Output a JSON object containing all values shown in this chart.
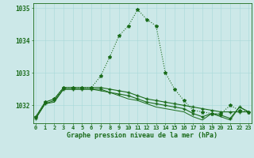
{
  "title": "Graphe pression niveau de la mer (hPa)",
  "hours": [
    0,
    1,
    2,
    3,
    4,
    5,
    6,
    7,
    8,
    9,
    10,
    11,
    12,
    13,
    14,
    15,
    16,
    17,
    18,
    19,
    20,
    21,
    22,
    23
  ],
  "line_main": [
    1031.65,
    1032.1,
    1032.2,
    1032.55,
    1032.55,
    1032.55,
    1032.55,
    1032.9,
    1033.5,
    1034.15,
    1034.45,
    1034.95,
    1034.65,
    1034.45,
    1033.0,
    1032.5,
    1032.15,
    1031.85,
    1031.8,
    1031.75,
    1031.75,
    1032.0,
    1031.85,
    1031.8
  ],
  "line_flat1": [
    1031.65,
    1032.1,
    1032.2,
    1032.55,
    1032.55,
    1032.55,
    1032.55,
    1032.55,
    1032.5,
    1032.45,
    1032.4,
    1032.3,
    1032.2,
    1032.15,
    1032.1,
    1032.05,
    1032.0,
    1031.95,
    1031.9,
    1031.85,
    1031.8,
    1031.8,
    1031.8,
    1031.8
  ],
  "line_flat2": [
    1031.6,
    1032.05,
    1032.15,
    1032.5,
    1032.5,
    1032.5,
    1032.5,
    1032.5,
    1032.4,
    1032.35,
    1032.3,
    1032.2,
    1032.1,
    1032.05,
    1032.0,
    1031.95,
    1031.9,
    1031.75,
    1031.65,
    1031.75,
    1031.7,
    1031.6,
    1031.95,
    1031.8
  ],
  "line_flat3": [
    1031.6,
    1032.05,
    1032.1,
    1032.5,
    1032.5,
    1032.5,
    1032.5,
    1032.45,
    1032.4,
    1032.3,
    1032.2,
    1032.15,
    1032.05,
    1031.95,
    1031.9,
    1031.85,
    1031.8,
    1031.65,
    1031.55,
    1031.75,
    1031.65,
    1031.55,
    1031.95,
    1031.8
  ],
  "line_color": "#1a6b1a",
  "bg_color": "#cce8e8",
  "grid_color": "#a8d8d8",
  "ylim_min": 1031.45,
  "ylim_max": 1035.15,
  "yticks": [
    1032,
    1033,
    1034,
    1035
  ]
}
